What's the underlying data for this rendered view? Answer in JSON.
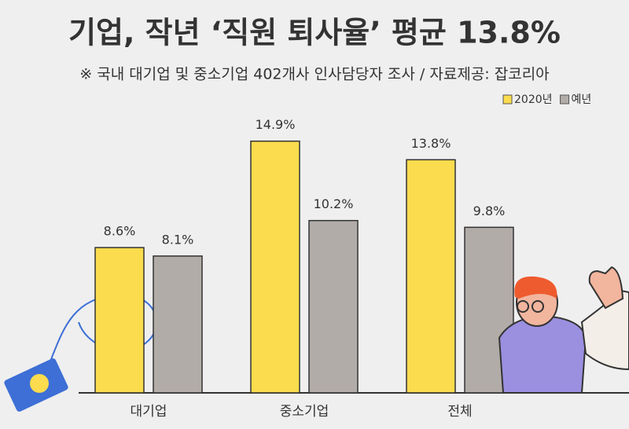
{
  "chart_data": {
    "type": "bar",
    "title": "기업, 작년 ‘직원 퇴사율’ 평균 13.8%",
    "subtitle": "※ 국내 대기업 및 중소기업 402개사 인사담당자 조사 / 자료제공: 잡코리아",
    "categories": [
      "대기업",
      "중소기업",
      "전체"
    ],
    "series": [
      {
        "name": "2020년",
        "color": "#fbdc4e",
        "values": [
          8.6,
          14.9,
          13.8
        ],
        "value_labels": [
          "8.6%",
          "14.9%",
          "13.8%"
        ]
      },
      {
        "name": "예년",
        "color": "#b2aca8",
        "values": [
          8.1,
          10.2,
          9.8
        ],
        "value_labels": [
          "8.1%",
          "10.2%",
          "9.8%"
        ]
      }
    ],
    "legend": "top-right"
  }
}
